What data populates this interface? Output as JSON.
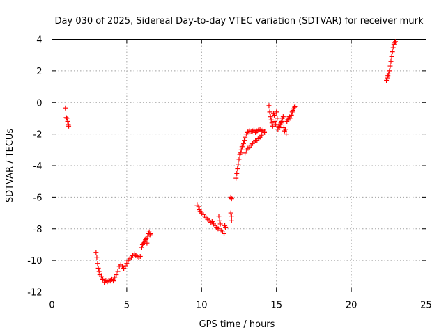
{
  "chart_data": {
    "type": "scatter",
    "title": "Day 030 of 2025, Sidereal Day-to-day VTEC variation (SDTVAR) for receiver murk",
    "xlabel": "GPS time / hours",
    "ylabel": "SDTVAR / TECUs",
    "xlim": [
      0,
      25
    ],
    "ylim": [
      -12,
      4
    ],
    "xticks": [
      "0",
      "5",
      "10",
      "15",
      "20",
      "25"
    ],
    "yticks": [
      "4",
      "2",
      "0",
      "-2",
      "-4",
      "-6",
      "-8",
      "-10",
      "-12"
    ],
    "grid": true,
    "marker": "+",
    "color": "#ff0000",
    "series": [
      {
        "points": [
          [
            0.9,
            -0.35
          ],
          [
            0.95,
            -0.95
          ],
          [
            1.0,
            -1.0
          ],
          [
            1.05,
            -1.2
          ],
          [
            1.1,
            -1.4
          ],
          [
            1.12,
            -1.5
          ],
          [
            2.95,
            -9.5
          ],
          [
            3.0,
            -9.8
          ],
          [
            3.05,
            -10.2
          ],
          [
            3.1,
            -10.5
          ],
          [
            3.15,
            -10.7
          ],
          [
            3.2,
            -10.9
          ],
          [
            3.3,
            -11.0
          ],
          [
            3.4,
            -11.2
          ],
          [
            3.5,
            -11.4
          ],
          [
            3.6,
            -11.3
          ],
          [
            3.7,
            -11.35
          ],
          [
            3.8,
            -11.3
          ],
          [
            3.9,
            -11.3
          ],
          [
            4.0,
            -11.2
          ],
          [
            4.1,
            -11.3
          ],
          [
            4.2,
            -11.1
          ],
          [
            4.3,
            -10.9
          ],
          [
            4.4,
            -10.7
          ],
          [
            4.5,
            -10.4
          ],
          [
            4.6,
            -10.3
          ],
          [
            4.7,
            -10.4
          ],
          [
            4.8,
            -10.5
          ],
          [
            4.9,
            -10.35
          ],
          [
            5.0,
            -10.2
          ],
          [
            5.1,
            -10.0
          ],
          [
            5.2,
            -9.9
          ],
          [
            5.3,
            -9.8
          ],
          [
            5.4,
            -9.7
          ],
          [
            5.5,
            -9.6
          ],
          [
            5.6,
            -9.7
          ],
          [
            5.7,
            -9.75
          ],
          [
            5.8,
            -9.8
          ],
          [
            5.9,
            -9.75
          ],
          [
            6.0,
            -9.2
          ],
          [
            6.05,
            -9.0
          ],
          [
            6.1,
            -8.9
          ],
          [
            6.2,
            -8.8
          ],
          [
            6.25,
            -8.7
          ],
          [
            6.3,
            -8.6
          ],
          [
            6.35,
            -8.9
          ],
          [
            6.4,
            -8.5
          ],
          [
            6.45,
            -8.3
          ],
          [
            6.5,
            -8.2
          ],
          [
            6.55,
            -8.4
          ],
          [
            6.6,
            -8.3
          ],
          [
            9.7,
            -6.5
          ],
          [
            9.8,
            -6.6
          ],
          [
            9.85,
            -6.8
          ],
          [
            9.9,
            -6.9
          ],
          [
            10.0,
            -7.0
          ],
          [
            10.1,
            -7.1
          ],
          [
            10.2,
            -7.2
          ],
          [
            10.3,
            -7.3
          ],
          [
            10.4,
            -7.4
          ],
          [
            10.5,
            -7.5
          ],
          [
            10.6,
            -7.6
          ],
          [
            10.7,
            -7.55
          ],
          [
            10.8,
            -7.7
          ],
          [
            10.9,
            -7.8
          ],
          [
            11.0,
            -7.9
          ],
          [
            11.1,
            -8.0
          ],
          [
            11.15,
            -7.2
          ],
          [
            11.2,
            -7.5
          ],
          [
            11.25,
            -7.7
          ],
          [
            11.3,
            -8.1
          ],
          [
            11.4,
            -8.2
          ],
          [
            11.5,
            -8.3
          ],
          [
            11.55,
            -7.8
          ],
          [
            11.6,
            -7.9
          ],
          [
            11.95,
            -6.0
          ],
          [
            12.0,
            -6.1
          ],
          [
            11.95,
            -7.0
          ],
          [
            12.0,
            -7.2
          ],
          [
            12.0,
            -7.5
          ],
          [
            12.3,
            -4.8
          ],
          [
            12.35,
            -4.5
          ],
          [
            12.4,
            -4.2
          ],
          [
            12.45,
            -3.9
          ],
          [
            12.5,
            -3.6
          ],
          [
            12.55,
            -3.3
          ],
          [
            12.6,
            -3.2
          ],
          [
            12.65,
            -3.0
          ],
          [
            12.7,
            -2.8
          ],
          [
            12.75,
            -2.7
          ],
          [
            12.8,
            -2.6
          ],
          [
            12.85,
            -2.4
          ],
          [
            12.9,
            -2.2
          ],
          [
            13.0,
            -2.0
          ],
          [
            13.05,
            -1.9
          ],
          [
            13.1,
            -1.85
          ],
          [
            13.2,
            -1.8
          ],
          [
            13.3,
            -1.85
          ],
          [
            13.4,
            -1.8
          ],
          [
            13.5,
            -1.75
          ],
          [
            13.6,
            -1.9
          ],
          [
            13.7,
            -1.8
          ],
          [
            13.8,
            -1.75
          ],
          [
            13.9,
            -1.7
          ],
          [
            14.0,
            -1.8
          ],
          [
            14.1,
            -1.75
          ],
          [
            14.2,
            -1.85
          ],
          [
            12.9,
            -3.2
          ],
          [
            13.0,
            -3.0
          ],
          [
            13.1,
            -2.9
          ],
          [
            13.2,
            -2.85
          ],
          [
            13.3,
            -2.7
          ],
          [
            13.4,
            -2.6
          ],
          [
            13.5,
            -2.5
          ],
          [
            13.6,
            -2.4
          ],
          [
            13.7,
            -2.4
          ],
          [
            13.8,
            -2.3
          ],
          [
            13.9,
            -2.2
          ],
          [
            14.0,
            -2.1
          ],
          [
            14.1,
            -2.0
          ],
          [
            14.2,
            -1.9
          ],
          [
            14.5,
            -0.2
          ],
          [
            14.55,
            -0.6
          ],
          [
            14.6,
            -0.9
          ],
          [
            14.65,
            -1.1
          ],
          [
            14.7,
            -1.3
          ],
          [
            14.75,
            -1.5
          ],
          [
            14.8,
            -0.7
          ],
          [
            14.85,
            -0.8
          ],
          [
            14.9,
            -1.2
          ],
          [
            14.95,
            -1.4
          ],
          [
            15.0,
            -0.6
          ],
          [
            15.05,
            -1.0
          ],
          [
            15.1,
            -1.7
          ],
          [
            15.15,
            -1.5
          ],
          [
            15.2,
            -1.6
          ],
          [
            15.25,
            -1.4
          ],
          [
            15.3,
            -1.3
          ],
          [
            15.35,
            -1.2
          ],
          [
            15.4,
            -1.0
          ],
          [
            15.45,
            -0.9
          ],
          [
            15.5,
            -1.6
          ],
          [
            15.55,
            -1.8
          ],
          [
            15.6,
            -1.7
          ],
          [
            15.65,
            -2.0
          ],
          [
            15.7,
            -1.2
          ],
          [
            15.75,
            -1.1
          ],
          [
            15.8,
            -1.0
          ],
          [
            15.85,
            -0.9
          ],
          [
            15.9,
            -1.0
          ],
          [
            16.0,
            -0.8
          ],
          [
            16.05,
            -0.6
          ],
          [
            16.1,
            -0.5
          ],
          [
            16.15,
            -0.4
          ],
          [
            16.2,
            -0.3
          ],
          [
            16.25,
            -0.25
          ],
          [
            22.35,
            1.4
          ],
          [
            22.4,
            1.55
          ],
          [
            22.45,
            1.7
          ],
          [
            22.5,
            1.8
          ],
          [
            22.55,
            2.0
          ],
          [
            22.6,
            2.3
          ],
          [
            22.65,
            2.6
          ],
          [
            22.7,
            2.9
          ],
          [
            22.75,
            3.2
          ],
          [
            22.8,
            3.5
          ],
          [
            22.85,
            3.7
          ],
          [
            22.9,
            3.8
          ],
          [
            22.95,
            3.85
          ]
        ]
      }
    ]
  }
}
